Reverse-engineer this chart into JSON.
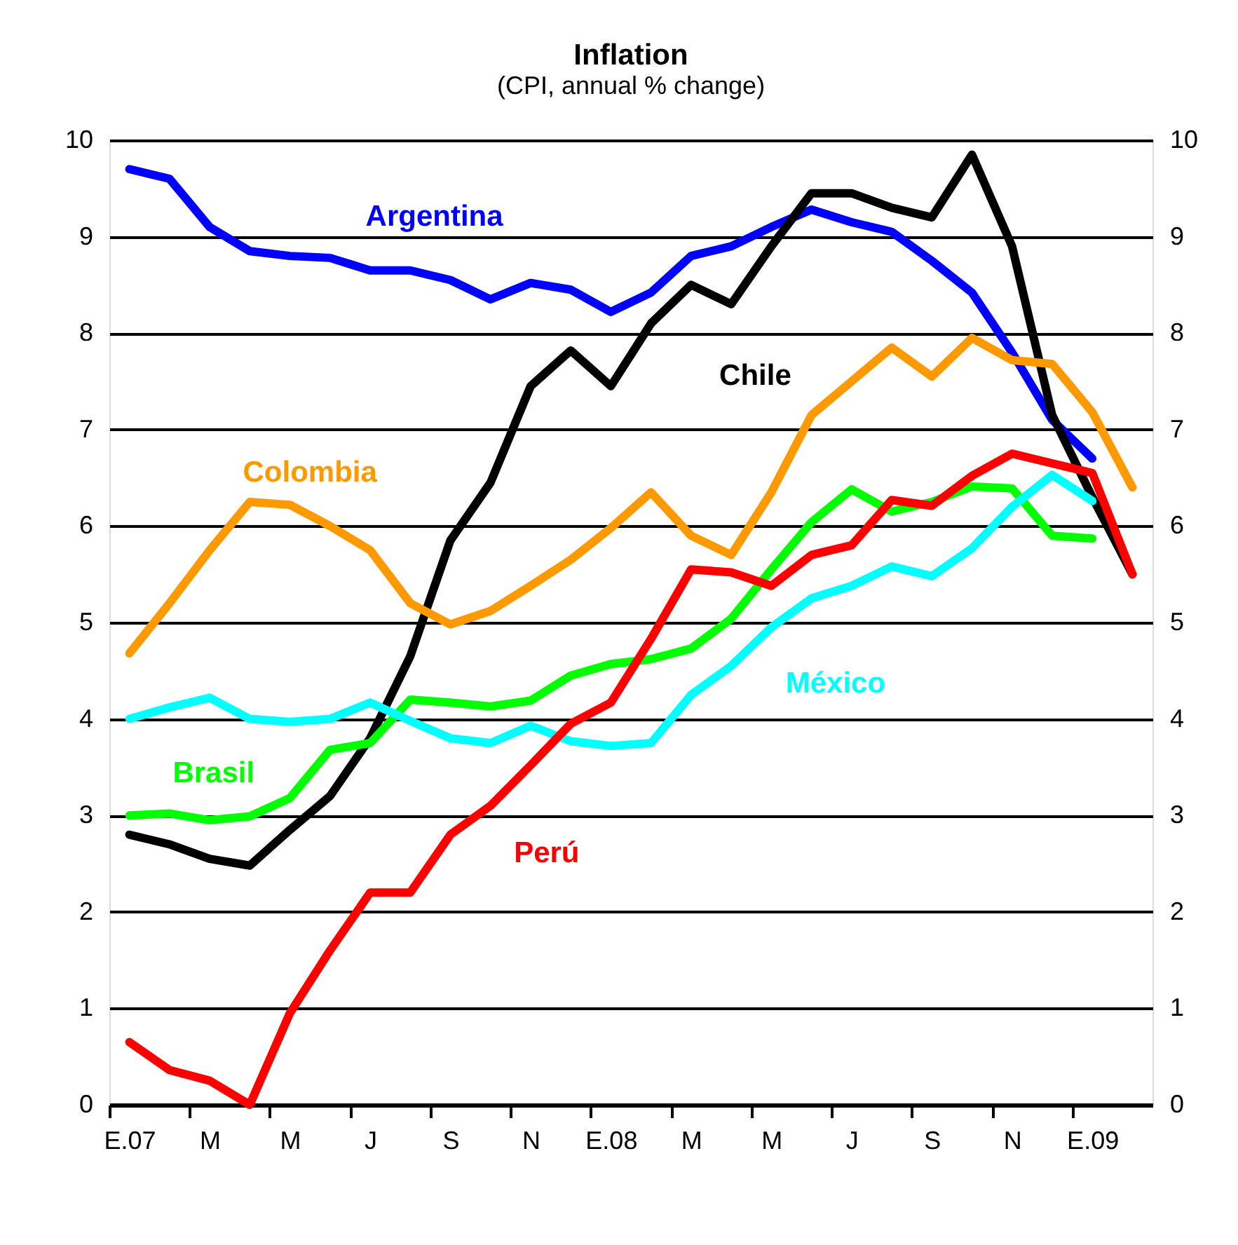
{
  "chart_data": {
    "type": "line",
    "title": "Inflation",
    "subtitle": "(CPI, annual % change)",
    "categories": [
      "E.07",
      null,
      "M",
      null,
      "M",
      null,
      "J",
      null,
      "S",
      null,
      "N",
      null,
      "E.08",
      null,
      "M",
      null,
      "M",
      null,
      "J",
      null,
      "S",
      null,
      "N",
      null,
      "E.09",
      null
    ],
    "series": [
      {
        "name": "Argentina",
        "color": "#0000ff",
        "values": [
          9.7,
          9.6,
          9.1,
          8.85,
          8.8,
          8.78,
          8.65,
          8.65,
          8.55,
          8.35,
          8.52,
          8.45,
          8.22,
          8.42,
          8.8,
          8.9,
          9.1,
          9.28,
          9.15,
          9.05,
          8.75,
          8.42,
          7.8,
          7.1,
          6.7,
          null
        ]
      },
      {
        "name": "Chile",
        "color": "#000000",
        "values": [
          2.8,
          2.7,
          2.55,
          2.48,
          2.85,
          3.2,
          3.8,
          4.65,
          5.85,
          6.45,
          7.45,
          7.82,
          7.45,
          8.1,
          8.5,
          8.3,
          8.9,
          9.45,
          9.45,
          9.3,
          9.2,
          9.85,
          8.9,
          7.15,
          6.3,
          5.5
        ]
      },
      {
        "name": "Colombia",
        "color": "#ff9900",
        "values": [
          4.68,
          5.2,
          5.75,
          6.25,
          6.22,
          6.0,
          5.75,
          5.2,
          4.98,
          5.12,
          5.38,
          5.65,
          5.98,
          6.35,
          5.9,
          5.7,
          6.35,
          7.15,
          7.5,
          7.85,
          7.55,
          7.95,
          7.72,
          7.68,
          7.18,
          6.4
        ]
      },
      {
        "name": "Brasil",
        "color": "#00ff00",
        "values": [
          3.0,
          3.02,
          2.95,
          2.99,
          3.18,
          3.68,
          3.75,
          4.2,
          4.17,
          4.13,
          4.19,
          4.45,
          4.57,
          4.62,
          4.73,
          5.04,
          5.55,
          6.04,
          6.38,
          6.15,
          6.25,
          6.41,
          6.39,
          5.9,
          5.87,
          null
        ]
      },
      {
        "name": "México",
        "color": "#00ffff",
        "values": [
          4.0,
          4.12,
          4.22,
          4.0,
          3.97,
          4.0,
          4.17,
          3.98,
          3.8,
          3.75,
          3.93,
          3.77,
          3.72,
          3.75,
          4.25,
          4.55,
          4.95,
          5.25,
          5.38,
          5.58,
          5.48,
          5.77,
          6.2,
          6.53,
          6.26,
          null
        ]
      },
      {
        "name": "Perú",
        "color": "#ff0000",
        "values": [
          0.65,
          0.36,
          0.25,
          0.0,
          0.95,
          1.6,
          2.2,
          2.2,
          2.8,
          3.1,
          3.52,
          3.95,
          4.17,
          4.83,
          5.55,
          5.52,
          5.38,
          5.7,
          5.8,
          6.27,
          6.21,
          6.52,
          6.75,
          6.65,
          6.55,
          5.5
        ]
      }
    ],
    "ylim": [
      0,
      10
    ],
    "yticks": [
      0,
      1,
      2,
      3,
      4,
      5,
      6,
      7,
      8,
      9,
      10
    ],
    "y2lim": [
      0,
      10
    ],
    "y2ticks": [
      0,
      1,
      2,
      3,
      4,
      5,
      6,
      7,
      8,
      9,
      10
    ],
    "grid": "y",
    "legend": false,
    "marker": "none",
    "line_style": "solid"
  }
}
